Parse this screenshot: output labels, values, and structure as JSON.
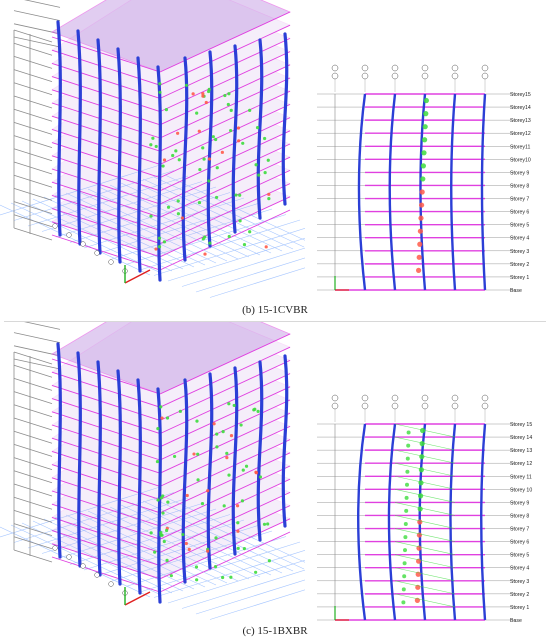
{
  "figures": [
    {
      "caption": "(b) 15-1CVBR",
      "elevation": {
        "axis_bubbles": [
          "①\nⒶ",
          "②\nⒷ",
          "③\nⒸ",
          "④\nⒹ",
          "⑤\nⒺ",
          "⑥\nⒻ"
        ],
        "storeys": [
          "Storey15",
          "Storey14",
          "Storey13",
          "Storey12",
          "Storey11",
          "Storey10",
          "Storey 9",
          "Storey 8",
          "Storey 7",
          "Storey 6",
          "Storey 5",
          "Storey 4",
          "Storey 3",
          "Storey 2",
          "Storey 1",
          "Base"
        ]
      }
    },
    {
      "caption": "(c) 15-1BXBR",
      "elevation": {
        "axis_bubbles": [
          "①\nⒶ",
          "②\nⒷ",
          "③\nⒸ",
          "④\nⒹ",
          "⑤\nⒺ",
          "⑥\nⒻ"
        ],
        "storeys": [
          "Storey 15",
          "Storey 14",
          "Storey 13",
          "Storey 12",
          "Storey 11",
          "Storey 10",
          "Storey 9",
          "Storey 8",
          "Storey 7",
          "Storey 6",
          "Storey 5",
          "Storey 4",
          "Storey 3",
          "Storey 2",
          "Storey 1",
          "Base"
        ]
      }
    }
  ],
  "colors": {
    "column": "#2b3fd6",
    "beam": "#e040e0",
    "grid": "#8ab4ff",
    "frame_gray": "#8c8c8c",
    "hinge_green": "#3ddc3d",
    "hinge_red": "#ff5a4a",
    "roof_fill": "#c9a6e6"
  }
}
